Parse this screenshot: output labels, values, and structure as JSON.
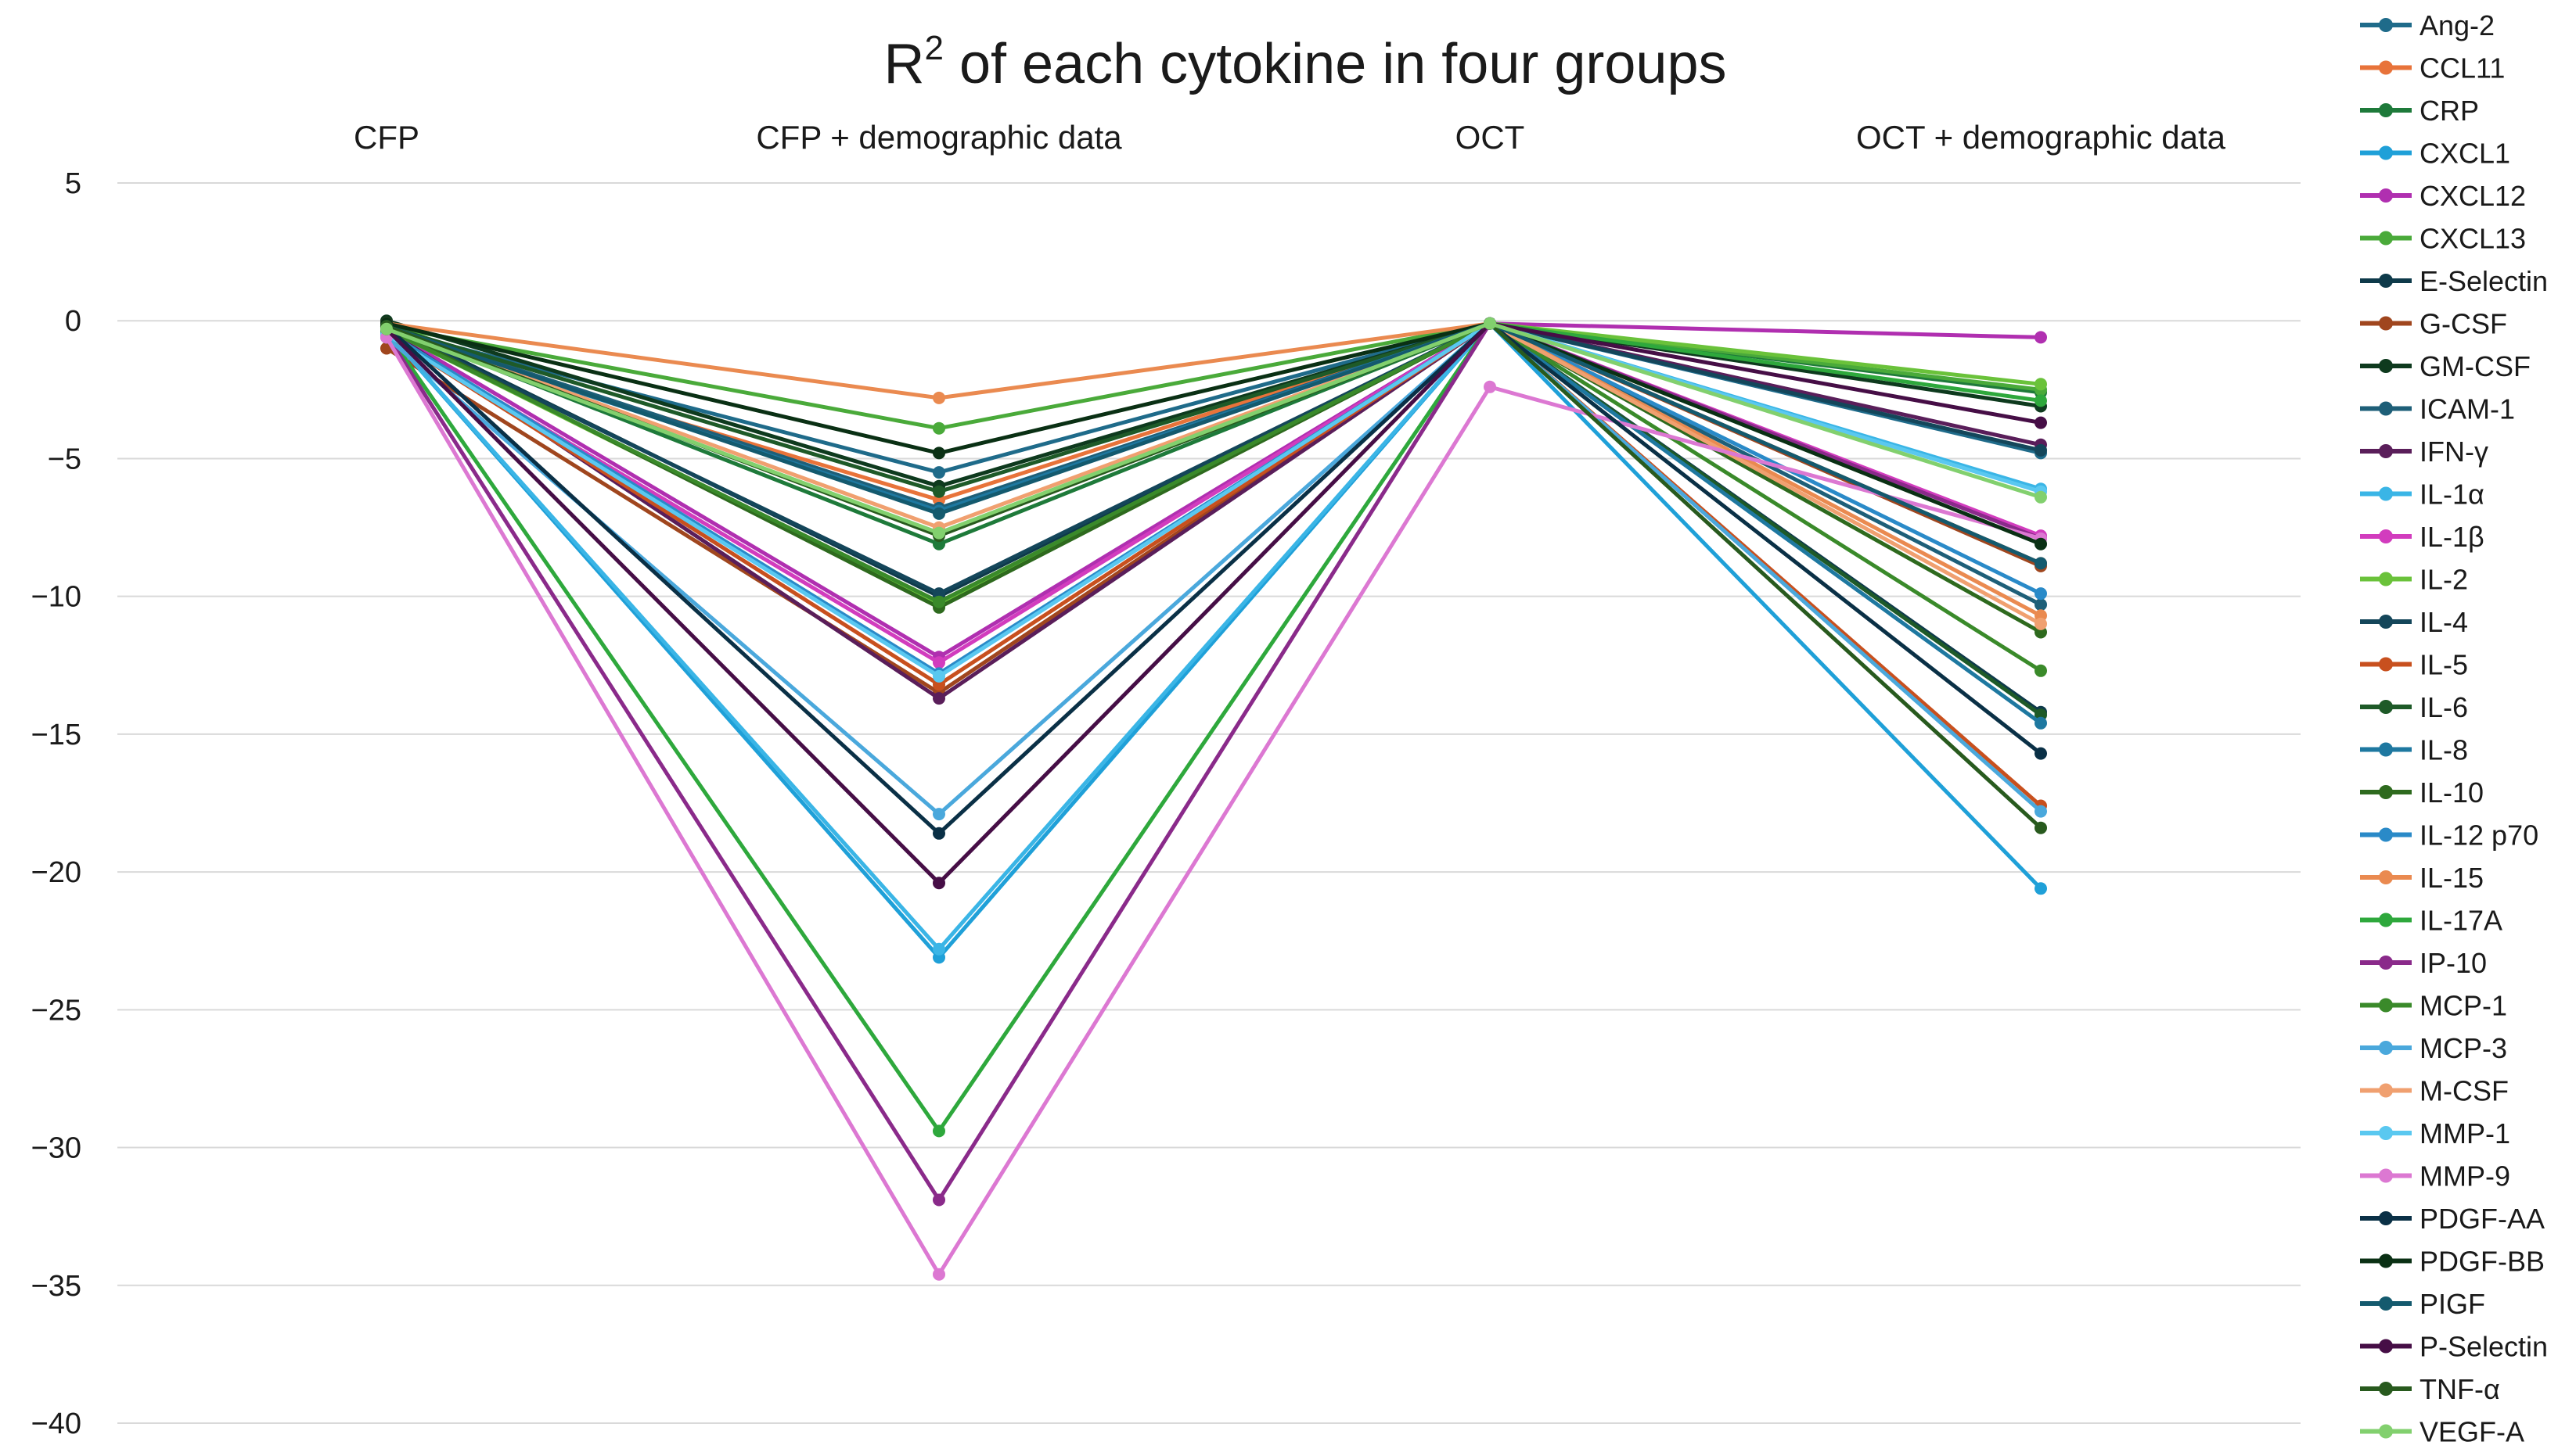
{
  "chart_data": {
    "type": "line",
    "title": {
      "base": "R",
      "sup": "2",
      "rest": " of each cytokine in four groups"
    },
    "categories": [
      "CFP",
      "CFP + demographic data",
      "OCT",
      "OCT + demographic data"
    ],
    "ylim": [
      -40,
      5
    ],
    "yticks": [
      5,
      0,
      -5,
      -10,
      -15,
      -20,
      -25,
      -30,
      -35,
      -40
    ],
    "ytick_labels": [
      "5",
      "0",
      "−5",
      "−10",
      "−15",
      "−20",
      "−25",
      "−30",
      "−35",
      "−40"
    ],
    "grid": true,
    "legend": "right",
    "series": [
      {
        "name": "Ang-2",
        "color": "#1f6b8a",
        "values": [
          -0.3,
          -5.5,
          -0.1,
          -4.8
        ]
      },
      {
        "name": "CCL11",
        "color": "#e8733a",
        "values": [
          -0.5,
          -6.5,
          -0.1,
          -8.8
        ]
      },
      {
        "name": "CRP",
        "color": "#1e7a3a",
        "values": [
          -0.2,
          -8.1,
          -0.1,
          -2.6
        ]
      },
      {
        "name": "CXCL1",
        "color": "#1fa0d8",
        "values": [
          -0.4,
          -23.1,
          -0.1,
          -20.6
        ]
      },
      {
        "name": "CXCL12",
        "color": "#b02fb0",
        "values": [
          -0.3,
          -12.2,
          -0.1,
          -0.6
        ]
      },
      {
        "name": "CXCL13",
        "color": "#4aaa3a",
        "values": [
          -0.2,
          -3.9,
          -0.1,
          -2.5
        ]
      },
      {
        "name": "E-Selectin",
        "color": "#0e3a4a",
        "values": [
          -0.1,
          -10.0,
          -0.1,
          -14.2
        ]
      },
      {
        "name": "G-CSF",
        "color": "#a0461e",
        "values": [
          -1.0,
          -13.5,
          -0.1,
          -8.9
        ]
      },
      {
        "name": "GM-CSF",
        "color": "#0e3a1e",
        "values": [
          0.0,
          -6.0,
          -0.1,
          -3.1
        ]
      },
      {
        "name": "ICAM-1",
        "color": "#1e5f78",
        "values": [
          -0.2,
          -6.8,
          -0.1,
          -10.3
        ]
      },
      {
        "name": "IFN-γ",
        "color": "#5a1e5a",
        "values": [
          -0.3,
          -13.7,
          -0.1,
          -4.5
        ]
      },
      {
        "name": "IL-1α",
        "color": "#3ab5e6",
        "values": [
          -0.4,
          -22.8,
          -0.1,
          -6.1
        ]
      },
      {
        "name": "IL-1β",
        "color": "#d23cbe",
        "values": [
          -0.5,
          -12.4,
          -0.1,
          -7.8
        ]
      },
      {
        "name": "IL-2",
        "color": "#6ac23a",
        "values": [
          -0.3,
          -10.3,
          -0.1,
          -2.3
        ]
      },
      {
        "name": "IL-4",
        "color": "#14465a",
        "values": [
          -0.2,
          -9.9,
          -0.1,
          -4.7
        ]
      },
      {
        "name": "IL-5",
        "color": "#c8501e",
        "values": [
          -0.5,
          -13.2,
          -0.1,
          -17.6
        ]
      },
      {
        "name": "IL-6",
        "color": "#1e5a28",
        "values": [
          -0.2,
          -6.2,
          -0.1,
          -14.3
        ]
      },
      {
        "name": "IL-8",
        "color": "#1e78a0",
        "values": [
          -0.3,
          -6.9,
          -0.1,
          -14.6
        ]
      },
      {
        "name": "IL-10",
        "color": "#2e6a1e",
        "values": [
          -0.2,
          -10.4,
          -0.1,
          -11.3
        ]
      },
      {
        "name": "IL-12 p70",
        "color": "#2a8ac8",
        "values": [
          -0.4,
          -12.8,
          -0.1,
          -9.9
        ]
      },
      {
        "name": "IL-15",
        "color": "#ea8a50",
        "values": [
          -0.1,
          -2.8,
          -0.1,
          -10.7
        ]
      },
      {
        "name": "IL-17A",
        "color": "#2ea83c",
        "values": [
          -0.4,
          -29.4,
          -0.1,
          -2.9
        ]
      },
      {
        "name": "IP-10",
        "color": "#8a2a8a",
        "values": [
          -0.5,
          -31.9,
          -0.1,
          -7.9
        ]
      },
      {
        "name": "MCP-1",
        "color": "#3a8a2a",
        "values": [
          -0.3,
          -10.2,
          -0.1,
          -12.7
        ]
      },
      {
        "name": "MCP-3",
        "color": "#4aa8dc",
        "values": [
          -0.6,
          -17.9,
          -0.1,
          -17.8
        ]
      },
      {
        "name": "M-CSF",
        "color": "#f0a070",
        "values": [
          -0.2,
          -7.5,
          -0.1,
          -11.0
        ]
      },
      {
        "name": "MMP-1",
        "color": "#5ac8f0",
        "values": [
          -0.5,
          -12.9,
          -0.1,
          -6.2
        ]
      },
      {
        "name": "MMP-9",
        "color": "#dc78d2",
        "values": [
          -0.6,
          -34.6,
          -2.4,
          -7.9
        ]
      },
      {
        "name": "PDGF-AA",
        "color": "#0a3046",
        "values": [
          -0.2,
          -18.6,
          -0.1,
          -15.7
        ]
      },
      {
        "name": "PDGF-BB",
        "color": "#0a3014",
        "values": [
          -0.1,
          -4.8,
          -0.1,
          -8.1
        ]
      },
      {
        "name": "PIGF",
        "color": "#145a6e",
        "values": [
          -0.2,
          -7.0,
          -0.1,
          -8.8
        ]
      },
      {
        "name": "P-Selectin",
        "color": "#460e46",
        "values": [
          -0.3,
          -20.4,
          -0.1,
          -3.7
        ]
      },
      {
        "name": "TNF-α",
        "color": "#285a1e",
        "values": [
          -0.2,
          -7.8,
          -0.1,
          -18.4
        ]
      },
      {
        "name": "VEGF-A",
        "color": "#82d06e",
        "values": [
          -0.3,
          -7.7,
          -0.1,
          -6.4
        ]
      }
    ]
  }
}
